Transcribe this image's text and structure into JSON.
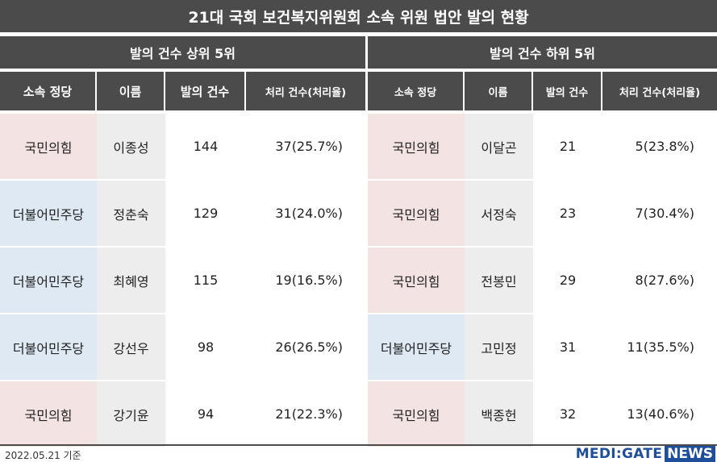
{
  "title": "21대 국회 보건복지위원회 소속 위원 법안 발의 현황",
  "columns": {
    "party": "소속 정당",
    "name": "이름",
    "count": "발의 건수",
    "processed": "처리 건수(처리율)"
  },
  "top5": {
    "header": "발의 건수 상위 5위",
    "rows": [
      {
        "party": "국민의힘",
        "party_type": "ppp",
        "name": "이종성",
        "count": "144",
        "processed": "37(25.7%)"
      },
      {
        "party": "더불어민주당",
        "party_type": "dem",
        "name": "정춘숙",
        "count": "129",
        "processed": "31(24.0%)"
      },
      {
        "party": "더불어민주당",
        "party_type": "dem",
        "name": "최혜영",
        "count": "115",
        "processed": "19(16.5%)"
      },
      {
        "party": "더불어민주당",
        "party_type": "dem",
        "name": "강선우",
        "count": "98",
        "processed": "26(26.5%)"
      },
      {
        "party": "국민의힘",
        "party_type": "ppp",
        "name": "강기윤",
        "count": "94",
        "processed": "21(22.3%)"
      }
    ]
  },
  "bottom5": {
    "header": "발의 건수 하위 5위",
    "rows": [
      {
        "party": "국민의힘",
        "party_type": "ppp",
        "name": "이달곤",
        "count": "21",
        "processed": "5(23.8%)"
      },
      {
        "party": "국민의힘",
        "party_type": "ppp",
        "name": "서정숙",
        "count": "23",
        "processed": "7(30.4%)"
      },
      {
        "party": "국민의힘",
        "party_type": "ppp",
        "name": "전봉민",
        "count": "29",
        "processed": "8(27.6%)"
      },
      {
        "party": "더불어민주당",
        "party_type": "dem",
        "name": "고민정",
        "count": "31",
        "processed": "11(35.5%)"
      },
      {
        "party": "국민의힘",
        "party_type": "ppp",
        "name": "백종헌",
        "count": "32",
        "processed": "13(40.6%)"
      }
    ]
  },
  "footer": {
    "date_note": "2022.05.21 기준",
    "logo_brand": "MEDI:GATE",
    "logo_news": "NEWS"
  },
  "colors": {
    "header_bg": "#4b4b4b",
    "ppp_bg": "#f4e3e3",
    "dem_bg": "#dfe9f3",
    "name_bg": "#ededed",
    "logo_blue": "#1f4e9b"
  }
}
